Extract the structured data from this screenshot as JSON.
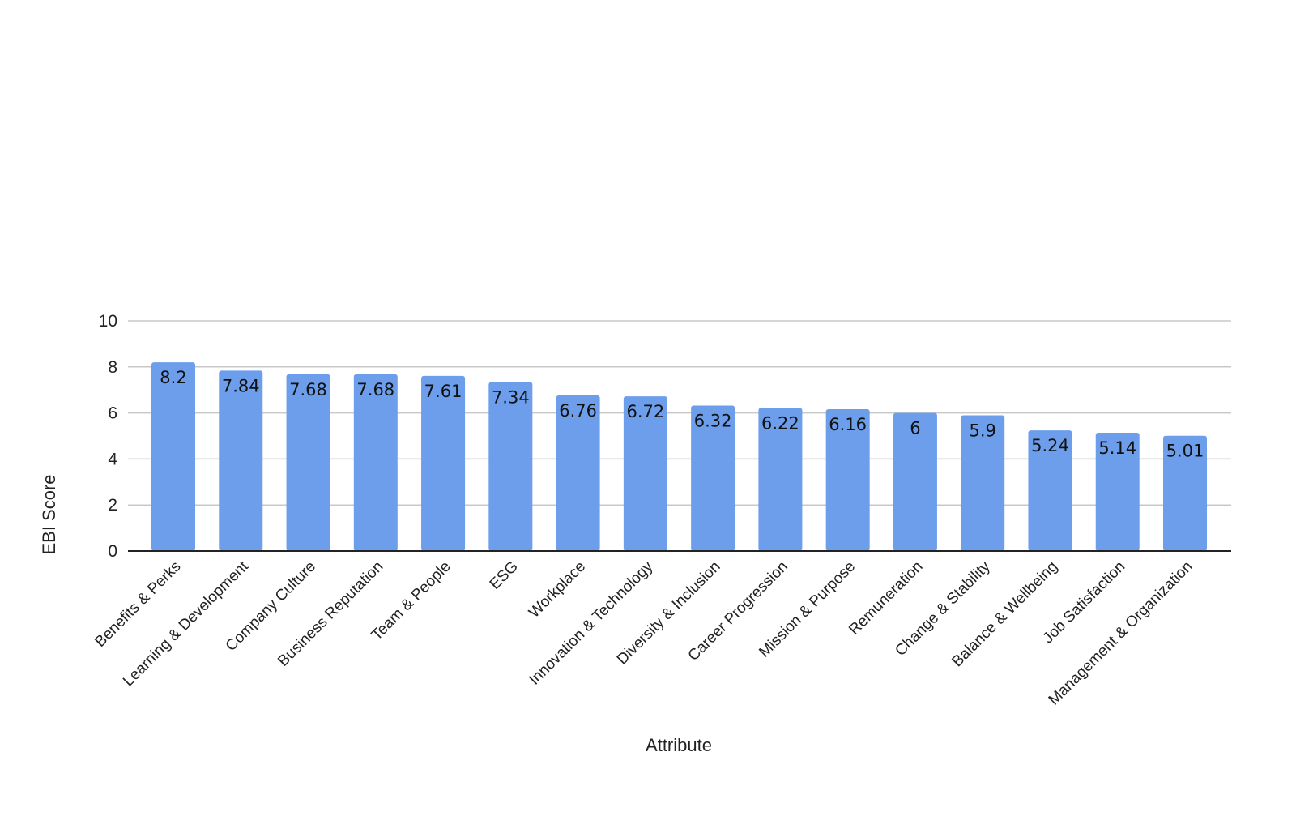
{
  "chart_data": {
    "type": "bar",
    "title": "",
    "xlabel": "Attribute",
    "ylabel": "EBI Score",
    "ylim": [
      0,
      10
    ],
    "yticks": [
      0,
      2,
      4,
      6,
      8,
      10
    ],
    "grid": true,
    "legend": "none",
    "colors": {
      "bar": "#6d9eeb"
    },
    "categories": [
      "Benefits & Perks",
      "Learning & Development",
      "Company Culture",
      "Business Reputation",
      "Team & People",
      "ESG",
      "Workplace",
      "Innovation & Technology",
      "Diversity & Inclusion",
      "Career Progression",
      "Mission & Purpose",
      "Remuneration",
      "Change & Stability",
      "Balance & Wellbeing",
      "Job Satisfaction",
      "Management & Organization"
    ],
    "values": [
      8.2,
      7.84,
      7.68,
      7.68,
      7.61,
      7.34,
      6.76,
      6.72,
      6.32,
      6.22,
      6.16,
      6,
      5.9,
      5.24,
      5.14,
      5.01
    ],
    "data_labels": [
      "8.2",
      "7.84",
      "7.68",
      "7.68",
      "7.61",
      "7.34",
      "6.76",
      "6.72",
      "6.32",
      "6.22",
      "6.16",
      "6",
      "5.9",
      "5.24",
      "5.14",
      "5.01"
    ]
  }
}
